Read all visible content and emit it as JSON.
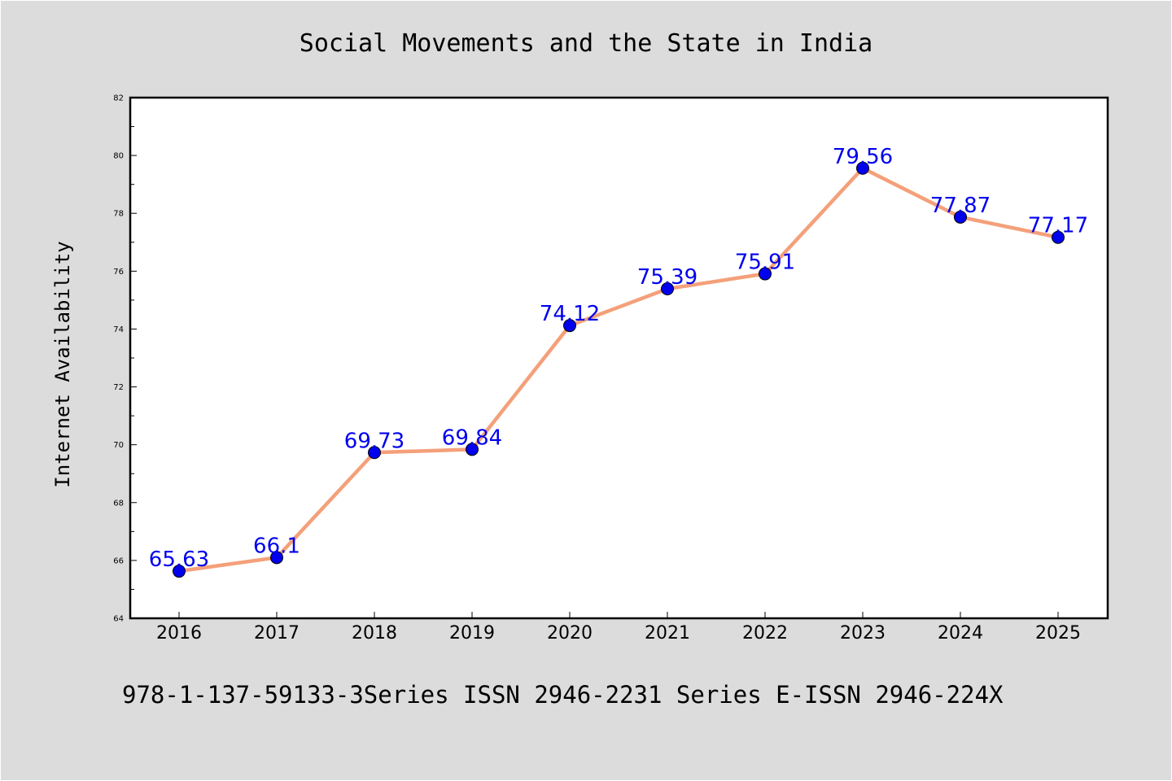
{
  "chart_data": {
    "type": "line",
    "title": "Social Movements and the State in India",
    "ylabel": "Internet Availability",
    "xlabel": "",
    "x": [
      "2016",
      "2017",
      "2018",
      "2019",
      "2020",
      "2021",
      "2022",
      "2023",
      "2024",
      "2025"
    ],
    "series": [
      {
        "values": [
          65.63,
          66.1,
          69.73,
          69.84,
          74.12,
          75.39,
          75.91,
          79.56,
          77.87,
          77.17
        ],
        "labels": [
          "65.63",
          "66.1",
          "69.73",
          "69.84",
          "74.12",
          "75.39",
          "75.91",
          "79.56",
          "77.87",
          "77.17"
        ]
      }
    ],
    "ylim": [
      64,
      82
    ],
    "yticks": [
      64,
      66,
      68,
      70,
      72,
      74,
      76,
      78,
      80,
      82
    ],
    "grid": false,
    "legend": "none",
    "colors": {
      "line": "#f4a07a",
      "marker": "#0000ee",
      "data_label": "#0000ee",
      "plot_background": "#ffffff",
      "page_background": "#dcdcdc"
    }
  },
  "footer": "978-1-137-59133-3Series ISSN 2946-2231 Series E-ISSN 2946-224X"
}
